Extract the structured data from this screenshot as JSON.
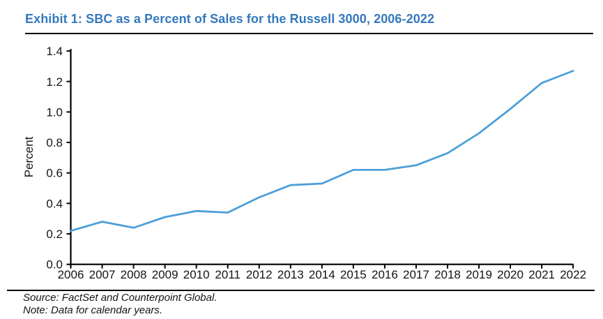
{
  "page": {
    "title": "Exhibit 1: SBC as a Percent of Sales for the Russell 3000, 2006-2022",
    "source_note": "Source: FactSet and Counterpoint Global.",
    "data_note": "Note: Data for calendar years."
  },
  "colors": {
    "title_blue": "#3478BD",
    "line_blue": "#4D9FD8",
    "axis_black": "#000000",
    "tick_text": "#141414"
  },
  "chart_data": {
    "type": "line",
    "title": "Exhibit 1: SBC as a Percent of Sales for the Russell 3000, 2006-2022",
    "categories": [
      "2006",
      "2007",
      "2008",
      "2009",
      "2010",
      "2011",
      "2012",
      "2013",
      "2014",
      "2015",
      "2016",
      "2017",
      "2018",
      "2019",
      "2020",
      "2021",
      "2022"
    ],
    "series": [
      {
        "name": "SBC as a Percent of Sales",
        "values": [
          0.22,
          0.28,
          0.24,
          0.31,
          0.35,
          0.34,
          0.44,
          0.52,
          0.53,
          0.62,
          0.62,
          0.65,
          0.73,
          0.86,
          1.02,
          1.19,
          1.27
        ]
      }
    ],
    "xlabel": "",
    "ylabel": "Percent",
    "ylim": [
      0.0,
      1.4
    ],
    "y_tick_step": 0.2,
    "y_tick_labels": [
      "0.0",
      "0.2",
      "0.4",
      "0.6",
      "0.8",
      "1.0",
      "1.2",
      "1.4"
    ],
    "grid": false,
    "legend": false
  }
}
